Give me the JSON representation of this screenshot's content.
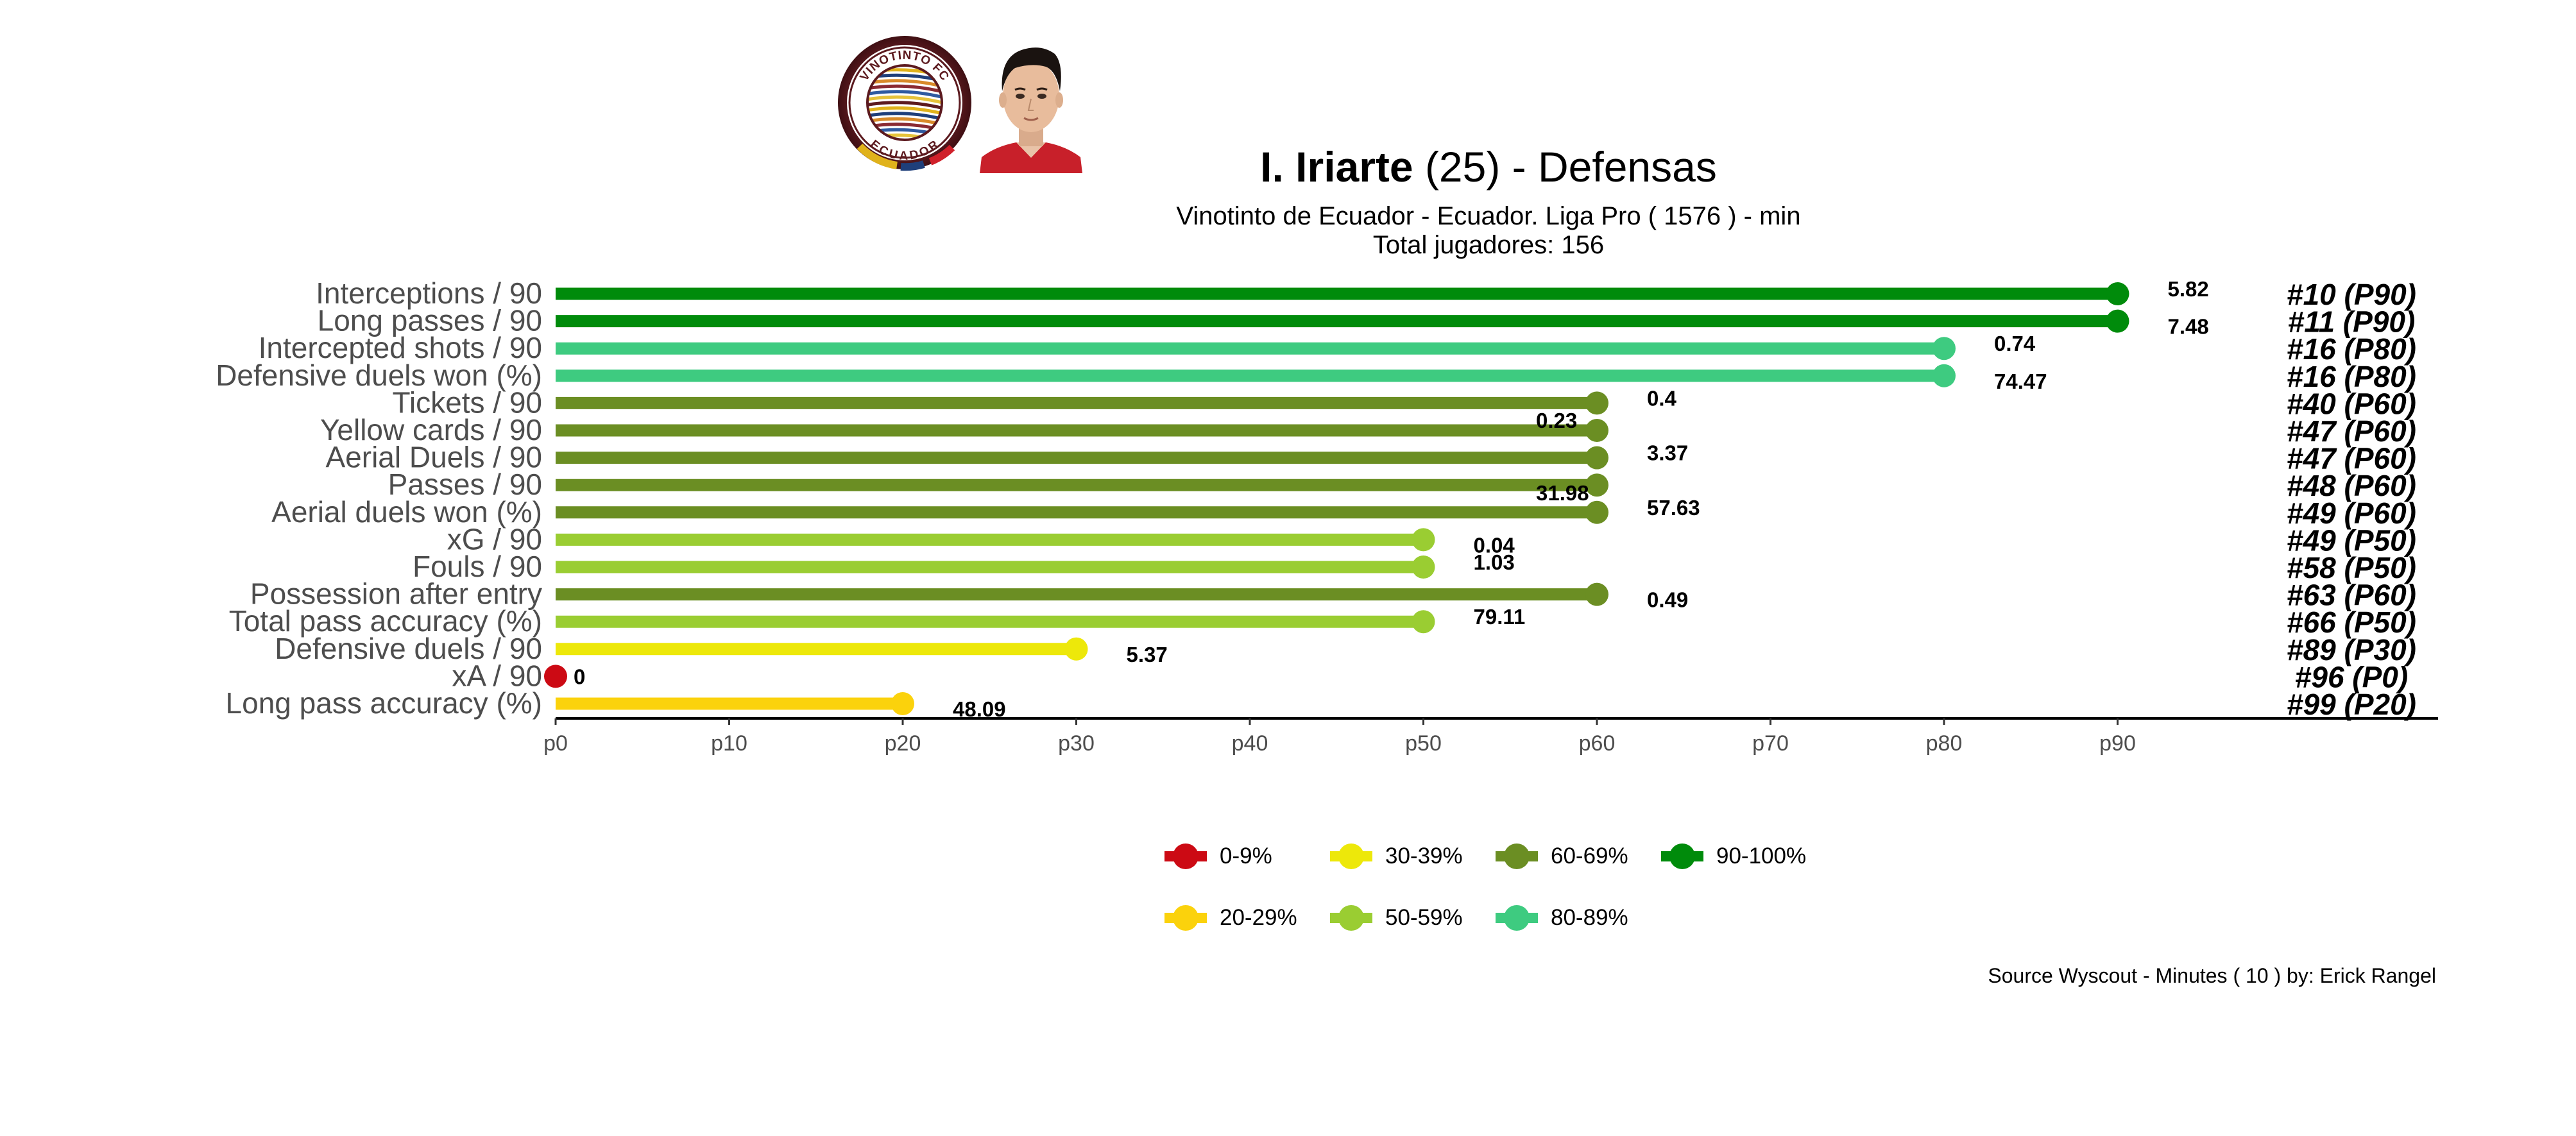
{
  "header": {
    "player_name": "I. Iriarte",
    "age_text": "(25)",
    "separator": "-",
    "position_group": "Defensas",
    "subtitle_line1": "Vinotinto de Ecuador  -  Ecuador. Liga Pro  ( 1576 ) - min",
    "subtitle_line2": "Total jugadores:  156"
  },
  "club_logo": {
    "text_top": "VINOTINTO FC",
    "text_bottom": "ECUADOR",
    "colors": {
      "maroon": "#5c1a1f",
      "gold": "#e0b21b",
      "navy": "#1f3f7a",
      "red": "#d0202a"
    }
  },
  "player_photo": {
    "icon": "player-headshot-icon"
  },
  "chart_data": {
    "type": "lollipop",
    "xlim": [
      0,
      100
    ],
    "x_ticks": [
      0,
      10,
      20,
      30,
      40,
      50,
      60,
      70,
      80,
      90
    ],
    "x_tick_labels": [
      "p0",
      "p10",
      "p20",
      "p30",
      "p40",
      "p50",
      "p60",
      "p70",
      "p80",
      "p90"
    ],
    "items": [
      {
        "metric": "Interceptions / 90",
        "percentile": 90,
        "value": "5.82",
        "rank": "#10 (P90)"
      },
      {
        "metric": "Long passes / 90",
        "percentile": 90,
        "value": "7.48",
        "rank": "#11 (P90)"
      },
      {
        "metric": "Intercepted shots / 90",
        "percentile": 80,
        "value": "0.74",
        "rank": "#16 (P80)"
      },
      {
        "metric": "Defensive duels won (%)",
        "percentile": 80,
        "value": "74.47",
        "rank": "#16 (P80)"
      },
      {
        "metric": "Tickets / 90",
        "percentile": 60,
        "value": "0.4",
        "rank": "#40 (P60)"
      },
      {
        "metric": "Yellow cards / 90",
        "percentile": 60,
        "value": "0.23",
        "rank": "#47 (P60)"
      },
      {
        "metric": "Aerial Duels / 90",
        "percentile": 60,
        "value": "3.37",
        "rank": "#47 (P60)"
      },
      {
        "metric": "Passes / 90",
        "percentile": 60,
        "value": "31.98",
        "rank": "#48 (P60)"
      },
      {
        "metric": "Aerial duels won (%)",
        "percentile": 60,
        "value": "57.63",
        "rank": "#49 (P60)"
      },
      {
        "metric": "xG / 90",
        "percentile": 50,
        "value": "0.04",
        "rank": "#49 (P50)"
      },
      {
        "metric": "Fouls / 90",
        "percentile": 50,
        "value": "1.03",
        "rank": "#58 (P50)"
      },
      {
        "metric": "Possession after entry",
        "percentile": 60,
        "value": "0.49",
        "rank": "#63 (P60)"
      },
      {
        "metric": "Total pass accuracy (%)",
        "percentile": 50,
        "value": "79.11",
        "rank": "#66 (P50)"
      },
      {
        "metric": "Defensive duels / 90",
        "percentile": 30,
        "value": "5.37",
        "rank": "#89 (P30)"
      },
      {
        "metric": "xA / 90",
        "percentile": 0,
        "value": "0",
        "rank": "#96 (P0)"
      },
      {
        "metric": "Long pass accuracy (%)",
        "percentile": 20,
        "value": "48.09",
        "rank": "#99 (P20)"
      }
    ],
    "legend": [
      {
        "label": "0-9%",
        "color": "#cc0a14"
      },
      {
        "label": "20-29%",
        "color": "#fbd20c"
      },
      {
        "label": "30-39%",
        "color": "#ede80a"
      },
      {
        "label": "50-59%",
        "color": "#9acd32"
      },
      {
        "label": "60-69%",
        "color": "#6b8e23"
      },
      {
        "label": "80-89%",
        "color": "#3ecb80"
      },
      {
        "label": "90-100%",
        "color": "#008b0b"
      }
    ],
    "legend_placement": "bottom",
    "grid": false
  },
  "caption": "Source Wyscout - Minutes ( 10 ) by: Erick Rangel"
}
